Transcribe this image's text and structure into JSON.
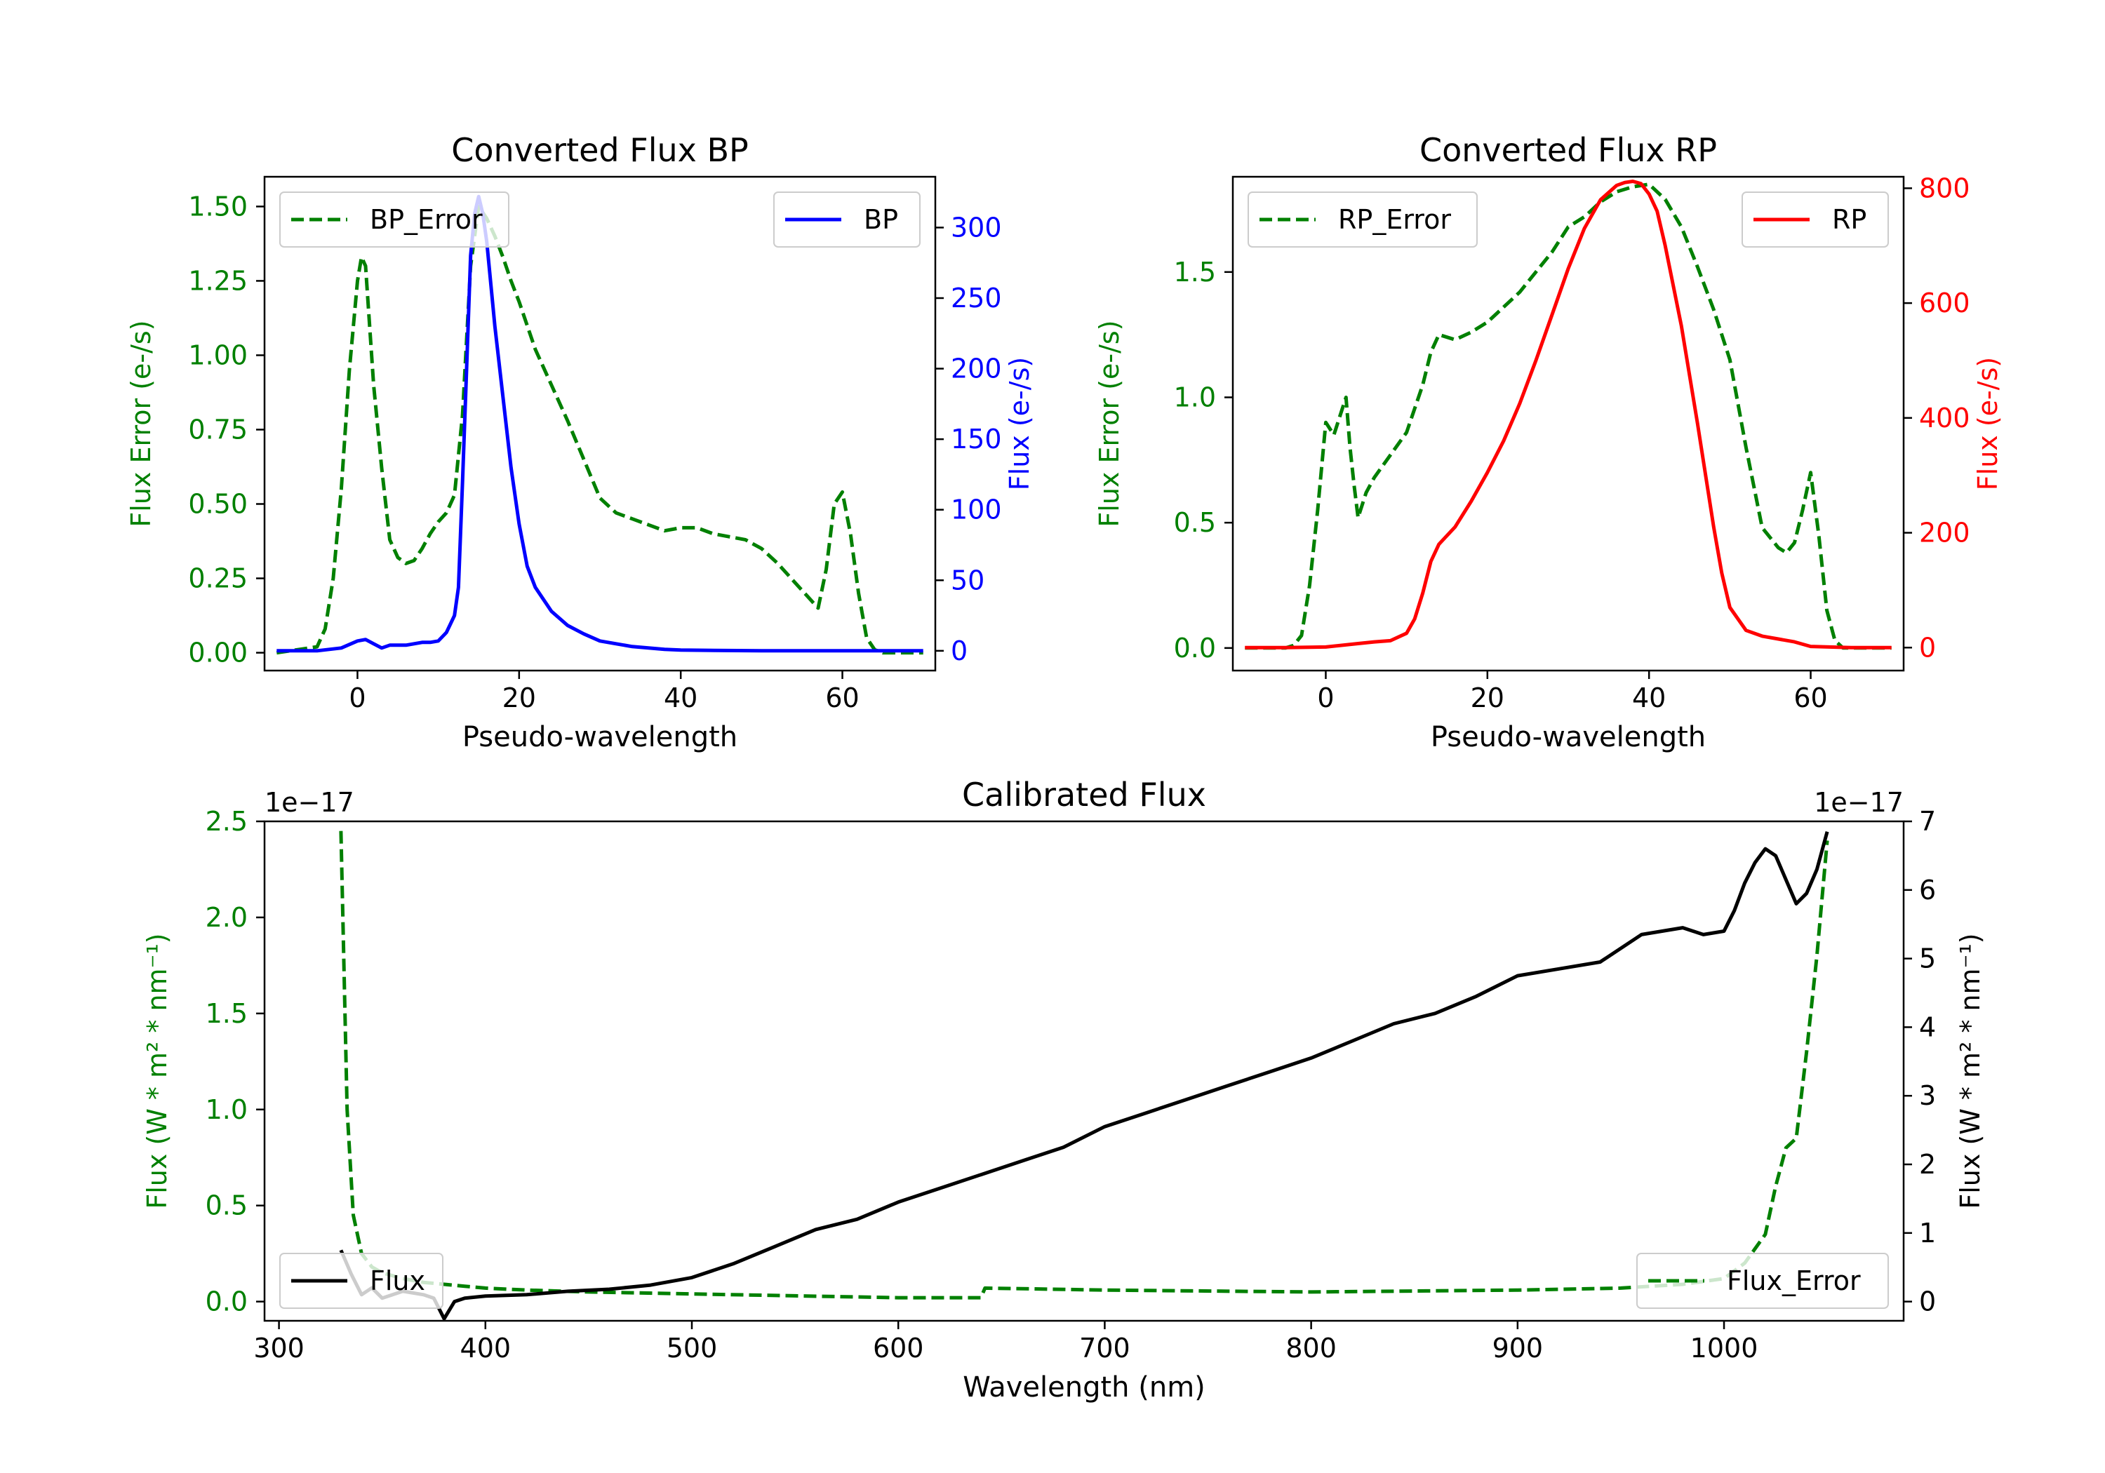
{
  "chart_data": [
    {
      "type": "line",
      "title": "Converted Flux BP",
      "xlabel": "Pseudo-wavelength",
      "ylabel_left": "Flux Error (e-/s)",
      "ylabel_right": "Flux (e-/s)",
      "xlim": [
        -11.5,
        71.5
      ],
      "ylim_left": [
        -0.06,
        1.6
      ],
      "ylim_right": [
        -14,
        336
      ],
      "xticks": [
        "0",
        "20",
        "40",
        "60"
      ],
      "yticks_left": [
        "0.00",
        "0.25",
        "0.50",
        "0.75",
        "1.00",
        "1.25",
        "1.50"
      ],
      "yticks_right": [
        "0",
        "50",
        "100",
        "150",
        "200",
        "250",
        "300"
      ],
      "legend_left": "BP_Error",
      "legend_right": "BP",
      "colors": {
        "error": "#008000",
        "flux": "#0000ff",
        "left_axis": "#008000",
        "right_axis": "#0000ff"
      },
      "series": [
        {
          "name": "BP_Error",
          "axis": "left",
          "style": "dashed",
          "x": [
            -10,
            -5,
            -4,
            -3,
            -2,
            -1,
            0,
            0.5,
            1,
            2,
            3,
            4,
            5,
            6,
            7,
            8,
            9,
            10,
            11,
            12,
            13,
            14,
            15,
            16,
            17,
            18,
            19,
            20,
            21,
            22,
            24,
            26,
            28,
            30,
            32,
            34,
            36,
            38,
            40,
            42,
            44,
            46,
            48,
            50,
            52,
            54,
            56,
            57,
            58,
            59,
            60,
            61,
            62,
            63,
            64,
            65,
            70
          ],
          "y": [
            0,
            0.02,
            0.08,
            0.25,
            0.55,
            0.95,
            1.25,
            1.33,
            1.3,
            0.9,
            0.62,
            0.38,
            0.32,
            0.3,
            0.31,
            0.35,
            0.4,
            0.44,
            0.47,
            0.53,
            0.8,
            1.3,
            1.5,
            1.46,
            1.4,
            1.33,
            1.25,
            1.18,
            1.1,
            1.02,
            0.9,
            0.78,
            0.65,
            0.52,
            0.47,
            0.45,
            0.43,
            0.41,
            0.42,
            0.42,
            0.4,
            0.39,
            0.38,
            0.35,
            0.3,
            0.24,
            0.18,
            0.15,
            0.28,
            0.5,
            0.54,
            0.4,
            0.2,
            0.05,
            0.01,
            0,
            0
          ]
        },
        {
          "name": "BP",
          "axis": "right",
          "style": "solid",
          "x": [
            -10,
            -5,
            -2,
            0,
            1,
            2,
            3,
            4,
            6,
            8,
            9,
            10,
            11,
            12,
            12.5,
            13,
            13.5,
            14,
            14.5,
            15,
            15.5,
            16,
            17,
            18,
            19,
            20,
            21,
            22,
            24,
            26,
            28,
            30,
            32,
            34,
            36,
            38,
            40,
            50,
            60,
            65,
            70
          ],
          "y": [
            0,
            0,
            2,
            7,
            8,
            5,
            2,
            4,
            4,
            6,
            6,
            7,
            13,
            25,
            45,
            120,
            200,
            280,
            310,
            322,
            310,
            290,
            230,
            180,
            130,
            90,
            60,
            45,
            28,
            18,
            12,
            7,
            5,
            3,
            2,
            1,
            0.5,
            0,
            0,
            0,
            0
          ]
        }
      ]
    },
    {
      "type": "line",
      "title": "Converted Flux RP",
      "xlabel": "Pseudo-wavelength",
      "ylabel_left": "Flux Error (e-/s)",
      "ylabel_right": "Flux (e-/s)",
      "xlim": [
        -11.5,
        71.5
      ],
      "ylim_left": [
        -0.09,
        1.88
      ],
      "ylim_right": [
        -40,
        820
      ],
      "xticks": [
        "0",
        "20",
        "40",
        "60"
      ],
      "yticks_left": [
        "0.0",
        "0.5",
        "1.0",
        "1.5"
      ],
      "yticks_right": [
        "0",
        "200",
        "400",
        "600",
        "800"
      ],
      "legend_left": "RP_Error",
      "legend_right": "RP",
      "colors": {
        "error": "#008000",
        "flux": "#ff0000",
        "left_axis": "#008000",
        "right_axis": "#ff0000"
      },
      "series": [
        {
          "name": "RP_Error",
          "axis": "left",
          "style": "dashed",
          "x": [
            -10,
            -5,
            -4,
            -3,
            -2,
            -1,
            0,
            1,
            2,
            2.5,
            3,
            3.5,
            4,
            5,
            6,
            8,
            10,
            12,
            13,
            14,
            16,
            18,
            20,
            22,
            24,
            26,
            28,
            30,
            32,
            34,
            36,
            38,
            40,
            42,
            44,
            46,
            48,
            50,
            52,
            54,
            56,
            57,
            58,
            59,
            60,
            61,
            62,
            63,
            64,
            70
          ],
          "y": [
            0,
            0,
            0.01,
            0.05,
            0.25,
            0.55,
            0.9,
            0.85,
            0.95,
            1.0,
            0.8,
            0.65,
            0.52,
            0.62,
            0.68,
            0.77,
            0.86,
            1.05,
            1.18,
            1.25,
            1.23,
            1.26,
            1.3,
            1.36,
            1.42,
            1.5,
            1.58,
            1.68,
            1.72,
            1.78,
            1.82,
            1.84,
            1.85,
            1.79,
            1.68,
            1.52,
            1.35,
            1.15,
            0.8,
            0.48,
            0.4,
            0.38,
            0.42,
            0.55,
            0.7,
            0.45,
            0.15,
            0.03,
            0,
            0
          ]
        },
        {
          "name": "RP",
          "axis": "right",
          "style": "solid",
          "x": [
            -10,
            -5,
            0,
            4,
            6,
            8,
            10,
            11,
            12,
            13,
            14,
            15,
            16,
            18,
            20,
            22,
            24,
            26,
            28,
            30,
            32,
            34,
            36,
            37,
            38,
            39,
            40,
            41,
            42,
            44,
            46,
            48,
            49,
            50,
            52,
            54,
            56,
            58,
            60,
            65,
            70
          ],
          "y": [
            0,
            0,
            1,
            7,
            10,
            12,
            25,
            50,
            95,
            150,
            180,
            195,
            210,
            255,
            305,
            360,
            425,
            500,
            580,
            660,
            730,
            780,
            805,
            810,
            812,
            808,
            790,
            760,
            700,
            560,
            390,
            210,
            130,
            70,
            30,
            20,
            15,
            10,
            2,
            0,
            0
          ]
        }
      ]
    },
    {
      "type": "line",
      "title": "Calibrated Flux",
      "xlabel": "Wavelength (nm)",
      "ylabel_left": "Flux (W * m² * nm⁻¹)",
      "ylabel_right": "Flux (W * m² * nm⁻¹)",
      "offset_left": "1e−17",
      "offset_right": "1e−17",
      "xlim": [
        293,
        1087
      ],
      "ylim_left": [
        -0.1,
        2.5
      ],
      "ylim_right": [
        -0.28,
        7.0
      ],
      "xticks": [
        "300",
        "400",
        "500",
        "600",
        "700",
        "800",
        "900",
        "1000"
      ],
      "yticks_left": [
        "0.0",
        "0.5",
        "1.0",
        "1.5",
        "2.0",
        "2.5"
      ],
      "yticks_right": [
        "0",
        "1",
        "2",
        "3",
        "4",
        "5",
        "6",
        "7"
      ],
      "legend_left": "Flux",
      "legend_right": "Flux_Error",
      "colors": {
        "error": "#008000",
        "flux": "#000000",
        "left_axis": "#008000",
        "right_axis": "#000000"
      },
      "series": [
        {
          "name": "Flux_Error",
          "axis": "left",
          "style": "dashed",
          "unit_scale": "1e-17",
          "x": [
            330,
            333,
            336,
            340,
            345,
            350,
            360,
            370,
            380,
            390,
            400,
            420,
            450,
            500,
            550,
            600,
            640,
            642,
            700,
            800,
            900,
            950,
            980,
            1000,
            1010,
            1020,
            1025,
            1030,
            1035,
            1040,
            1045,
            1050
          ],
          "y": [
            2.45,
            1.0,
            0.45,
            0.25,
            0.18,
            0.15,
            0.12,
            0.1,
            0.09,
            0.08,
            0.07,
            0.06,
            0.05,
            0.04,
            0.03,
            0.02,
            0.02,
            0.07,
            0.06,
            0.05,
            0.06,
            0.07,
            0.09,
            0.12,
            0.2,
            0.35,
            0.6,
            0.8,
            0.85,
            1.3,
            1.8,
            2.4
          ]
        },
        {
          "name": "Flux",
          "axis": "right",
          "style": "solid",
          "unit_scale": "1e-17",
          "x": [
            330,
            335,
            340,
            345,
            350,
            360,
            370,
            375,
            380,
            385,
            390,
            400,
            420,
            440,
            460,
            480,
            500,
            520,
            540,
            560,
            580,
            600,
            620,
            640,
            660,
            680,
            700,
            720,
            740,
            760,
            780,
            800,
            820,
            840,
            860,
            880,
            900,
            920,
            940,
            960,
            980,
            990,
            1000,
            1005,
            1010,
            1015,
            1020,
            1025,
            1030,
            1035,
            1040,
            1045,
            1050
          ],
          "y": [
            0.75,
            0.4,
            0.1,
            0.2,
            0.05,
            0.15,
            0.1,
            0.05,
            -0.25,
            0.0,
            0.05,
            0.08,
            0.1,
            0.15,
            0.18,
            0.24,
            0.35,
            0.55,
            0.8,
            1.05,
            1.2,
            1.45,
            1.65,
            1.85,
            2.05,
            2.25,
            2.55,
            2.75,
            2.95,
            3.15,
            3.35,
            3.55,
            3.8,
            4.05,
            4.2,
            4.45,
            4.75,
            4.85,
            4.95,
            5.35,
            5.45,
            5.35,
            5.4,
            5.7,
            6.1,
            6.4,
            6.6,
            6.5,
            6.15,
            5.8,
            5.95,
            6.3,
            6.85
          ]
        }
      ]
    }
  ]
}
